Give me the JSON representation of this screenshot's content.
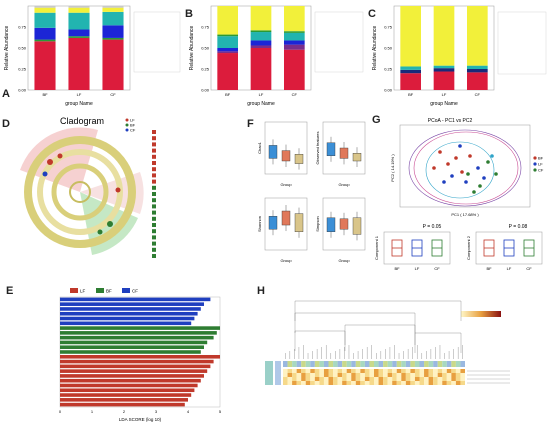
{
  "letters": {
    "A": "A",
    "B": "B",
    "C": "C",
    "D": "D",
    "E": "E",
    "F": "F",
    "G": "G",
    "H": "H"
  },
  "colors": {
    "red": "#dc1c3c",
    "teal": "#22b4b0",
    "blue": "#1c25d6",
    "yellow": "#f2f03a",
    "green": "#2a9a35",
    "purple": "#7a2e8a",
    "navy": "#1a2a7a",
    "orange": "#e08020",
    "lf": "#c0392b",
    "bf": "#2e7d32",
    "cf": "#1f3fbf"
  },
  "chart_data": [
    {
      "type": "bar",
      "stacked": true,
      "panel": "A",
      "ylabel": "Relative Abundance",
      "xlabel": "group Name",
      "yticks": [
        "0.00",
        "0.25",
        "0.50",
        "0.75"
      ],
      "categories": [
        "BF",
        "LF",
        "CF"
      ],
      "series": [
        {
          "color": "#dc1c3c",
          "values": [
            0.58,
            0.62,
            0.6
          ]
        },
        {
          "color": "#2a9a35",
          "values": [
            0.02,
            0.02,
            0.02
          ]
        },
        {
          "color": "#1c25d6",
          "values": [
            0.14,
            0.08,
            0.15
          ]
        },
        {
          "color": "#22b4b0",
          "values": [
            0.18,
            0.2,
            0.16
          ]
        },
        {
          "color": "#f2f03a",
          "values": [
            0.06,
            0.06,
            0.05
          ]
        },
        {
          "color": "#c8c8c8",
          "values": [
            0.02,
            0.02,
            0.02
          ]
        }
      ],
      "ylim": [
        0,
        1
      ]
    },
    {
      "type": "bar",
      "stacked": true,
      "panel": "B",
      "ylabel": "Relative Abundance",
      "xlabel": "group Name",
      "yticks": [
        "0.00",
        "0.25",
        "0.50",
        "0.75"
      ],
      "categories": [
        "BF",
        "LF",
        "CF"
      ],
      "series": [
        {
          "color": "#dc1c3c",
          "values": [
            0.44,
            0.5,
            0.48
          ]
        },
        {
          "color": "#7a2e8a",
          "values": [
            0.02,
            0.03,
            0.06
          ]
        },
        {
          "color": "#1c25d6",
          "values": [
            0.04,
            0.06,
            0.05
          ]
        },
        {
          "color": "#22b4b0",
          "values": [
            0.14,
            0.1,
            0.09
          ]
        },
        {
          "color": "#2a9a35",
          "values": [
            0.02,
            0.02,
            0.02
          ]
        },
        {
          "color": "#f2f03a",
          "values": [
            0.34,
            0.29,
            0.3
          ]
        }
      ],
      "ylim": [
        0,
        1
      ]
    },
    {
      "type": "bar",
      "stacked": true,
      "panel": "C",
      "ylabel": "Relative Abundance",
      "xlabel": "group Name",
      "yticks": [
        "0.00",
        "0.25",
        "0.50",
        "0.75"
      ],
      "categories": [
        "BF",
        "LF",
        "CF"
      ],
      "series": [
        {
          "color": "#dc1c3c",
          "values": [
            0.2,
            0.22,
            0.21
          ]
        },
        {
          "color": "#1a2a7a",
          "values": [
            0.04,
            0.04,
            0.04
          ]
        },
        {
          "color": "#22b4b0",
          "values": [
            0.04,
            0.03,
            0.04
          ]
        },
        {
          "color": "#f2f03a",
          "values": [
            0.72,
            0.71,
            0.71
          ]
        }
      ],
      "ylim": [
        0,
        1
      ]
    },
    {
      "type": "scatter",
      "panel": "G",
      "title": "PCoA - PC1 vs PC2",
      "xlabel": "PC1 ( 17.68% )",
      "ylabel": "PC2 ( 14.19% )",
      "groups": [
        {
          "name": "BF",
          "color": "#c0392b"
        },
        {
          "name": "LF",
          "color": "#1f3fbf"
        },
        {
          "name": "CF",
          "color": "#2e7d32"
        }
      ]
    },
    {
      "type": "bar",
      "orientation": "horizontal",
      "panel": "E",
      "xlabel": "LDA SCORE (log 10)",
      "xticks": [
        "0",
        "1",
        "2",
        "3",
        "4",
        "5"
      ],
      "groups": [
        {
          "name": "LF",
          "color": "#c0392b"
        },
        {
          "name": "BF",
          "color": "#2e7d32"
        },
        {
          "name": "CF",
          "color": "#1f3fbf"
        }
      ],
      "values": [
        {
          "g": "CF",
          "v": 4.7
        },
        {
          "g": "CF",
          "v": 4.5
        },
        {
          "g": "CF",
          "v": 4.4
        },
        {
          "g": "CF",
          "v": 4.3
        },
        {
          "g": "CF",
          "v": 4.2
        },
        {
          "g": "CF",
          "v": 4.1
        },
        {
          "g": "BF",
          "v": 5.0
        },
        {
          "g": "BF",
          "v": 4.9
        },
        {
          "g": "BF",
          "v": 4.8
        },
        {
          "g": "BF",
          "v": 4.6
        },
        {
          "g": "BF",
          "v": 4.5
        },
        {
          "g": "BF",
          "v": 4.4
        },
        {
          "g": "LF",
          "v": 5.0
        },
        {
          "g": "LF",
          "v": 4.8
        },
        {
          "g": "LF",
          "v": 4.7
        },
        {
          "g": "LF",
          "v": 4.6
        },
        {
          "g": "LF",
          "v": 4.5
        },
        {
          "g": "LF",
          "v": 4.4
        },
        {
          "g": "LF",
          "v": 4.3
        },
        {
          "g": "LF",
          "v": 4.2
        },
        {
          "g": "LF",
          "v": 4.1
        },
        {
          "g": "LF",
          "v": 4.0
        },
        {
          "g": "LF",
          "v": 3.9
        }
      ]
    }
  ],
  "D": {
    "title": "Cladogram",
    "legend_groups": [
      "LF",
      "BF",
      "CF"
    ]
  },
  "F": {
    "ylabels": [
      "Chao1",
      "Observed features",
      "Shannon",
      "Simpson"
    ],
    "xlabel": "Group"
  },
  "G": {
    "p1": "P = 0.05",
    "p2": "P = 0.08",
    "y1": "Component 1",
    "y2": "Component 2",
    "cats": [
      "BF",
      "LF",
      "CF"
    ]
  }
}
